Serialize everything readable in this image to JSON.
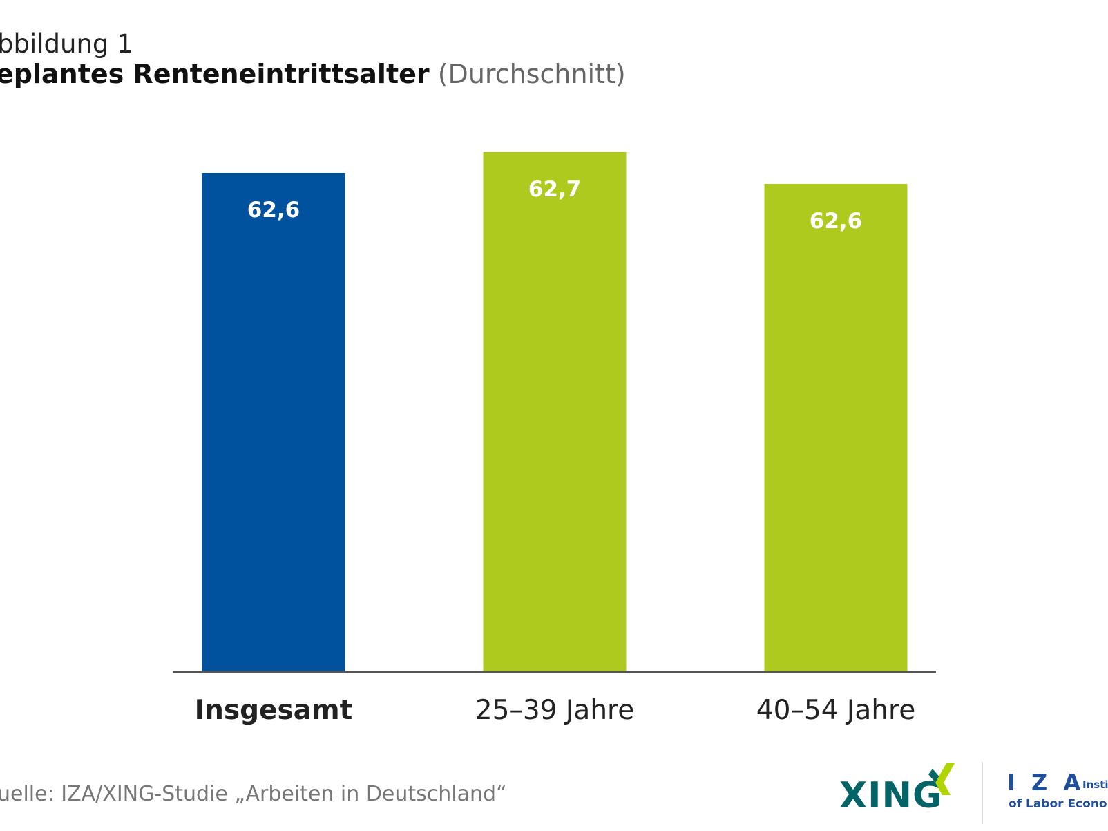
{
  "figure": {
    "kicker": "bbildung 1",
    "title_bold": "eplantes Renteneintrittsalter",
    "title_light": "(Durchschnitt)",
    "source": "uelle: IZA/XING-Studie „Arbeiten in Deutschland“"
  },
  "logos": {
    "xing": "XING",
    "iza_letters": "I Z A",
    "iza_line1": "Insti",
    "iza_line2": "of Labor Econo"
  },
  "colors": {
    "blue": "#00529f",
    "green": "#afca1e",
    "axis": "#555555",
    "text": "#222222",
    "muted": "#777777",
    "xing_teal": "#026466",
    "xing_green": "#b0d400",
    "iza_blue": "#1f4e9c"
  },
  "chart_data": {
    "type": "bar",
    "categories": [
      "Insgesamt",
      "25–39 Jahre",
      "40–54 Jahre"
    ],
    "values": [
      62.6,
      62.7,
      62.6
    ],
    "value_labels": [
      "62,6",
      "62,7",
      "62,6"
    ],
    "bar_colors": [
      "#00529f",
      "#afca1e",
      "#afca1e"
    ],
    "category_bold": [
      true,
      false,
      false
    ],
    "title": "eplantes Renteneintrittsalter (Durchschnitt)",
    "grid": false
  }
}
